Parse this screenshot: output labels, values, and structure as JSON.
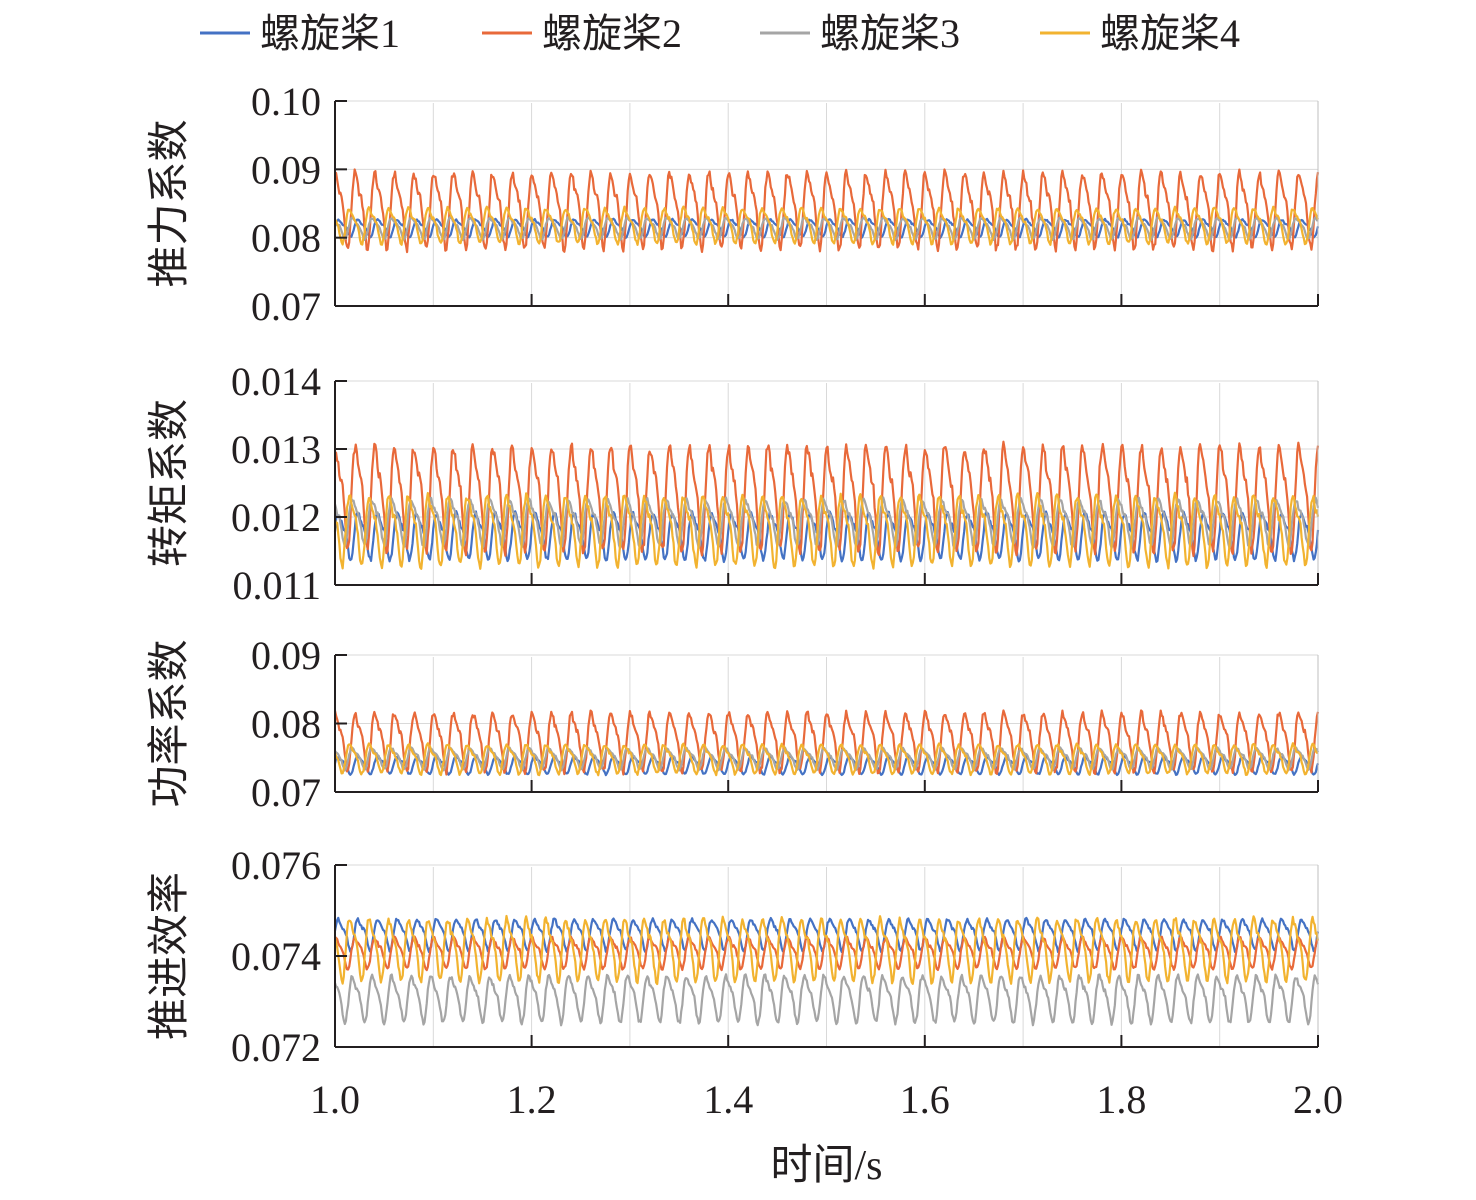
{
  "chart_data": {
    "type": "line",
    "legend_position": "top",
    "x_axis": {
      "label": "时间/s",
      "range": [
        1.0,
        2.0
      ],
      "ticks": [
        1.0,
        1.2,
        1.4,
        1.6,
        1.8,
        2.0
      ],
      "tick_labels": [
        "1.0",
        "1.2",
        "1.4",
        "1.6",
        "1.8",
        "2.0"
      ]
    },
    "series_names": [
      "螺旋桨1",
      "螺旋桨2",
      "螺旋桨3",
      "螺旋桨4"
    ],
    "series_colors": [
      "#4472c4",
      "#e8693a",
      "#a5a5a5",
      "#f2b330"
    ],
    "panels": [
      {
        "ylabel": "推力系数",
        "ylim": [
          0.07,
          0.1
        ],
        "yticks": [
          "0.07",
          "0.08",
          "0.09",
          "0.10"
        ],
        "ytick_values": [
          0.07,
          0.08,
          0.09,
          0.1
        ],
        "series": [
          {
            "name": "螺旋桨1",
            "mean": 0.0815,
            "amplitude": 0.0015,
            "cycles": 50
          },
          {
            "name": "螺旋桨2",
            "mean": 0.0845,
            "amplitude": 0.0065,
            "cycles": 50
          },
          {
            "name": "螺旋桨3",
            "mean": 0.0815,
            "amplitude": 0.0018,
            "cycles": 50
          },
          {
            "name": "螺旋桨4",
            "mean": 0.082,
            "amplitude": 0.003,
            "cycles": 50
          }
        ]
      },
      {
        "ylabel": "转矩系数",
        "ylim": [
          0.011,
          0.014
        ],
        "yticks": [
          "0.011",
          "0.012",
          "0.013",
          "0.014"
        ],
        "ytick_values": [
          0.011,
          0.012,
          0.013,
          0.014
        ],
        "series": [
          {
            "name": "螺旋桨1",
            "mean": 0.01175,
            "amplitude": 0.0004,
            "cycles": 50
          },
          {
            "name": "螺旋桨2",
            "mean": 0.01235,
            "amplitude": 0.0009,
            "cycles": 50
          },
          {
            "name": "螺旋桨3",
            "mean": 0.01195,
            "amplitude": 0.0004,
            "cycles": 50
          },
          {
            "name": "螺旋桨4",
            "mean": 0.01185,
            "amplitude": 0.0006,
            "cycles": 50
          }
        ]
      },
      {
        "ylabel": "功率系数",
        "ylim": [
          0.07,
          0.09
        ],
        "yticks": [
          "0.07",
          "0.08",
          "0.09"
        ],
        "ytick_values": [
          0.07,
          0.08,
          0.09
        ],
        "series": [
          {
            "name": "螺旋桨1",
            "mean": 0.074,
            "amplitude": 0.0015,
            "cycles": 50
          },
          {
            "name": "螺旋桨2",
            "mean": 0.0777,
            "amplitude": 0.005,
            "cycles": 50
          },
          {
            "name": "螺旋桨3",
            "mean": 0.075,
            "amplitude": 0.0018,
            "cycles": 50
          },
          {
            "name": "螺旋桨4",
            "mean": 0.075,
            "amplitude": 0.0025,
            "cycles": 50
          }
        ]
      },
      {
        "ylabel": "推进效率",
        "ylim": [
          0.072,
          0.076
        ],
        "yticks": [
          "0.072",
          "0.074",
          "0.076"
        ],
        "ytick_values": [
          0.072,
          0.074,
          0.076
        ],
        "series": [
          {
            "name": "螺旋桨1",
            "mean": 0.0745,
            "amplitude": 0.0004,
            "cycles": 50
          },
          {
            "name": "螺旋桨2",
            "mean": 0.0741,
            "amplitude": 0.0004,
            "cycles": 50
          },
          {
            "name": "螺旋桨3",
            "mean": 0.0731,
            "amplitude": 0.0006,
            "cycles": 50
          },
          {
            "name": "螺旋桨4",
            "mean": 0.0742,
            "amplitude": 0.0008,
            "cycles": 50
          }
        ]
      }
    ]
  }
}
